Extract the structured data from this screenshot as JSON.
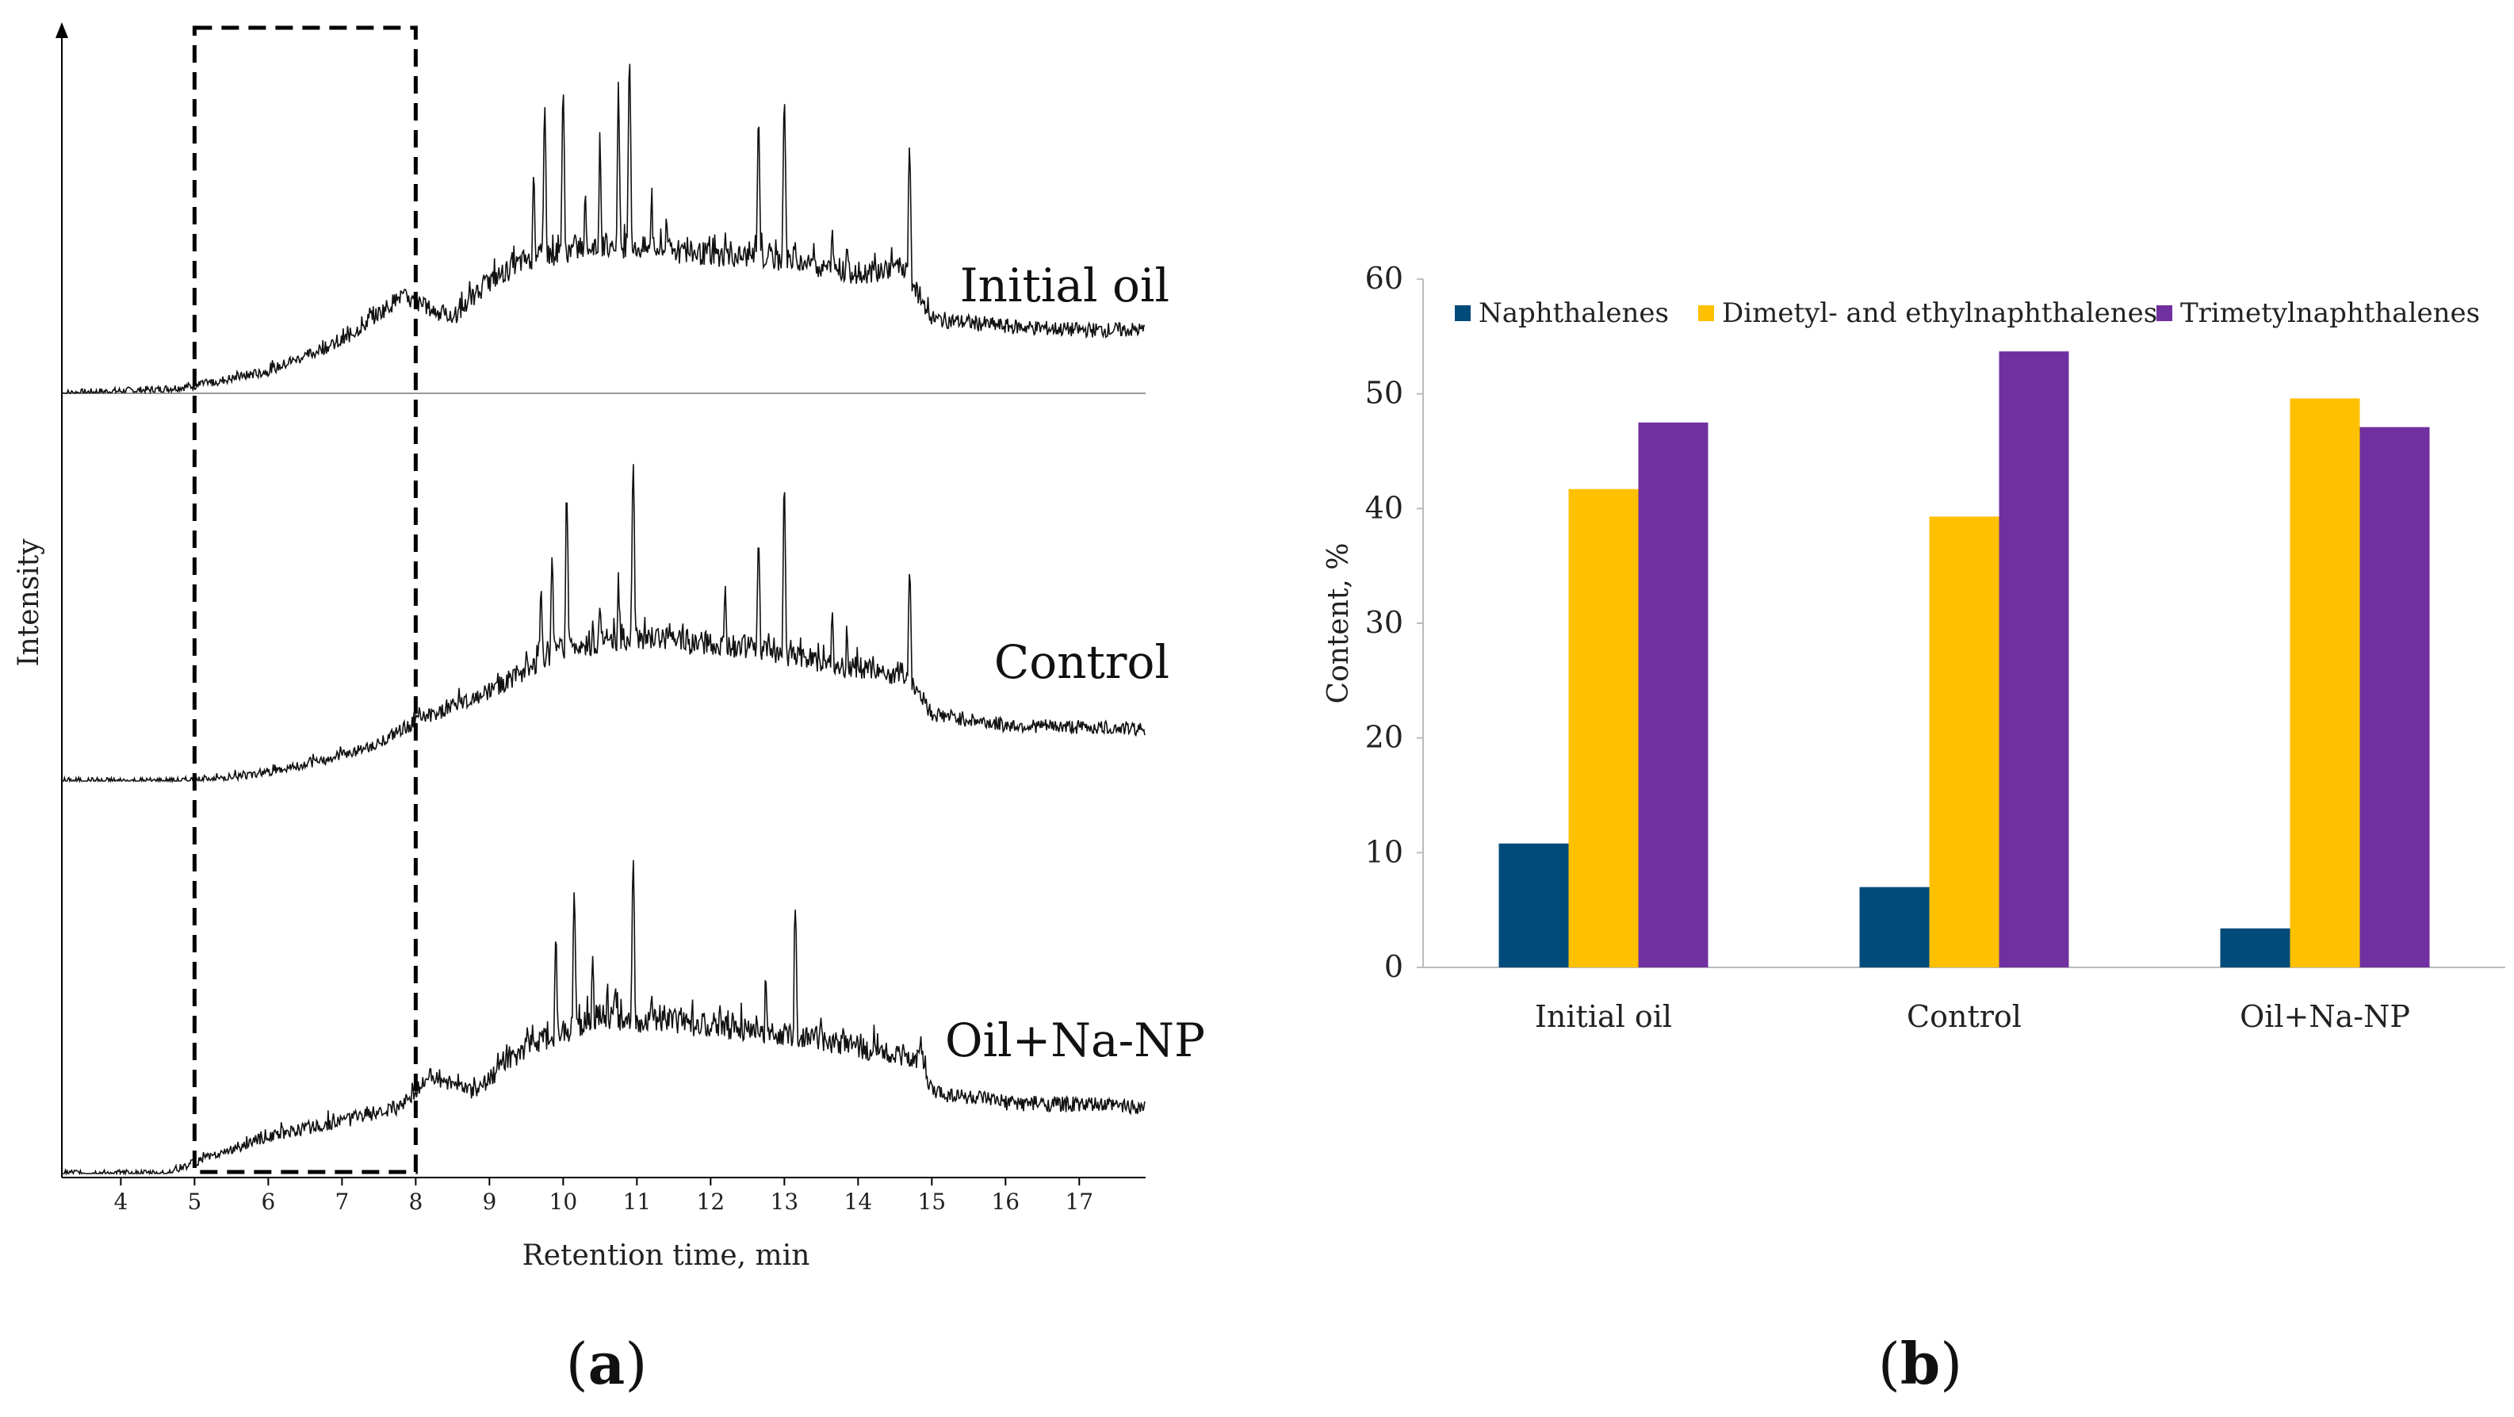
{
  "chart_data": [
    {
      "type": "line",
      "panel": "(a)",
      "panel_letter": "a",
      "xlabel": "Retention time, min",
      "ylabel": "Intensity",
      "x_ticks": [
        "4",
        "5",
        "6",
        "7",
        "8",
        "9",
        "10",
        "11",
        "12",
        "13",
        "14",
        "15",
        "16",
        "17"
      ],
      "xlim": [
        3.2,
        17.9
      ],
      "highlight_window": [
        5,
        8
      ],
      "series": [
        {
          "name": "Initial oil",
          "profile": [
            [
              3.2,
              0.0
            ],
            [
              4.5,
              0.01
            ],
            [
              5.0,
              0.02
            ],
            [
              6.0,
              0.06
            ],
            [
              7.0,
              0.14
            ],
            [
              7.8,
              0.26
            ],
            [
              8.5,
              0.2
            ],
            [
              9.0,
              0.3
            ],
            [
              9.5,
              0.36
            ],
            [
              10.5,
              0.4
            ],
            [
              11.5,
              0.38
            ],
            [
              13.0,
              0.36
            ],
            [
              14.0,
              0.32
            ],
            [
              14.6,
              0.34
            ],
            [
              15.0,
              0.2
            ],
            [
              16.0,
              0.18
            ],
            [
              17.0,
              0.17
            ],
            [
              17.9,
              0.17
            ]
          ],
          "peaks": [
            [
              7.4,
              0.16
            ],
            [
              7.8,
              0.2
            ],
            [
              9.3,
              0.2
            ],
            [
              9.6,
              0.48
            ],
            [
              9.75,
              0.66
            ],
            [
              10.0,
              0.7
            ],
            [
              10.3,
              0.42
            ],
            [
              10.5,
              0.52
            ],
            [
              10.75,
              0.66
            ],
            [
              10.9,
              0.78
            ],
            [
              11.2,
              0.4
            ],
            [
              11.4,
              0.36
            ],
            [
              11.6,
              0.28
            ],
            [
              12.2,
              0.32
            ],
            [
              12.65,
              0.6
            ],
            [
              13.0,
              0.68
            ],
            [
              13.4,
              0.3
            ],
            [
              13.65,
              0.34
            ],
            [
              13.85,
              0.3
            ],
            [
              14.2,
              0.22
            ],
            [
              14.7,
              0.54
            ]
          ]
        },
        {
          "name": "Control",
          "profile": [
            [
              3.2,
              0.0
            ],
            [
              4.8,
              0.0
            ],
            [
              5.5,
              0.01
            ],
            [
              6.5,
              0.04
            ],
            [
              7.5,
              0.1
            ],
            [
              8.0,
              0.16
            ],
            [
              9.0,
              0.24
            ],
            [
              10.0,
              0.36
            ],
            [
              11.0,
              0.38
            ],
            [
              12.5,
              0.36
            ],
            [
              14.0,
              0.3
            ],
            [
              14.7,
              0.28
            ],
            [
              15.0,
              0.18
            ],
            [
              16.0,
              0.15
            ],
            [
              17.9,
              0.14
            ]
          ],
          "peaks": [
            [
              7.9,
              0.08
            ],
            [
              9.7,
              0.42
            ],
            [
              9.85,
              0.5
            ],
            [
              10.05,
              0.64
            ],
            [
              10.5,
              0.36
            ],
            [
              10.75,
              0.4
            ],
            [
              10.95,
              0.74
            ],
            [
              11.4,
              0.3
            ],
            [
              11.7,
              0.26
            ],
            [
              12.2,
              0.38
            ],
            [
              12.65,
              0.54
            ],
            [
              13.0,
              0.64
            ],
            [
              13.35,
              0.26
            ],
            [
              13.65,
              0.36
            ],
            [
              13.85,
              0.3
            ],
            [
              14.2,
              0.24
            ],
            [
              14.7,
              0.48
            ]
          ]
        },
        {
          "name": "Oil+Na-NP",
          "profile": [
            [
              3.2,
              0.0
            ],
            [
              4.6,
              0.0
            ],
            [
              5.0,
              0.03
            ],
            [
              6.0,
              0.1
            ],
            [
              7.0,
              0.14
            ],
            [
              7.8,
              0.18
            ],
            [
              8.2,
              0.26
            ],
            [
              8.8,
              0.22
            ],
            [
              9.5,
              0.34
            ],
            [
              10.5,
              0.42
            ],
            [
              12.0,
              0.4
            ],
            [
              13.5,
              0.36
            ],
            [
              14.5,
              0.32
            ],
            [
              14.85,
              0.3
            ],
            [
              15.0,
              0.22
            ],
            [
              16.0,
              0.19
            ],
            [
              17.9,
              0.18
            ]
          ],
          "peaks": [
            [
              7.7,
              0.1
            ],
            [
              8.1,
              0.12
            ],
            [
              8.6,
              0.12
            ],
            [
              9.9,
              0.52
            ],
            [
              10.15,
              0.64
            ],
            [
              10.4,
              0.46
            ],
            [
              10.6,
              0.38
            ],
            [
              10.95,
              0.72
            ],
            [
              11.2,
              0.36
            ],
            [
              11.7,
              0.3
            ],
            [
              12.3,
              0.32
            ],
            [
              12.75,
              0.4
            ],
            [
              13.15,
              0.6
            ],
            [
              13.5,
              0.3
            ],
            [
              13.8,
              0.26
            ],
            [
              14.3,
              0.2
            ],
            [
              14.85,
              0.28
            ]
          ]
        }
      ]
    },
    {
      "type": "bar",
      "panel": "(b)",
      "panel_letter": "b",
      "categories": [
        "Initial oil",
        "Control",
        "Oil+Na-NP"
      ],
      "series": [
        {
          "name": "Naphthalenes",
          "values": [
            10.8,
            7.0,
            3.4
          ],
          "color": "#004b7a"
        },
        {
          "name": "Dimetyl- and ethylnaphthalenes",
          "values": [
            41.7,
            39.3,
            49.6
          ],
          "color": "#ffc000"
        },
        {
          "name": "Trimetylnaphthalenes",
          "values": [
            47.5,
            53.7,
            47.1
          ],
          "color": "#7030a0"
        }
      ],
      "ylabel": "Content, %",
      "xlabel": "",
      "ylim": [
        0,
        60
      ],
      "y_ticks": [
        "0",
        "10",
        "20",
        "30",
        "40",
        "50",
        "60"
      ],
      "legend_position": "top"
    }
  ]
}
